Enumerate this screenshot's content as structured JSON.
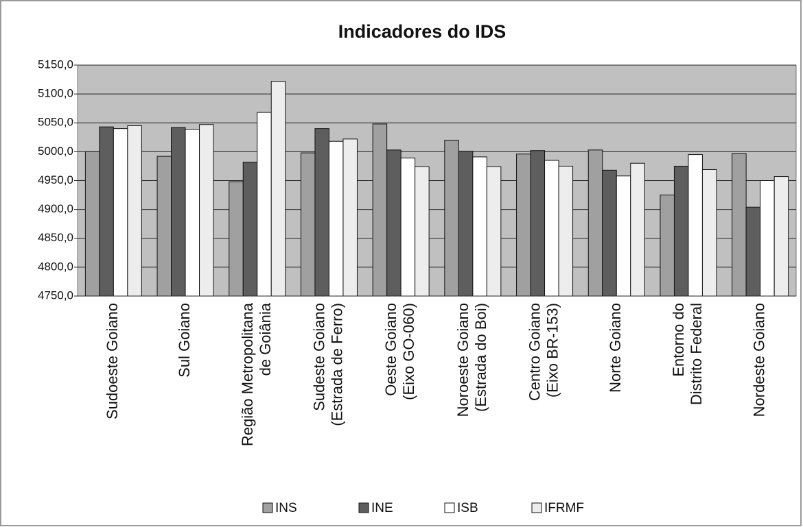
{
  "chart_data": {
    "type": "bar",
    "title": "Indicadores do IDS",
    "categories": [
      "Sudoeste Goiano",
      "Sul Goiano",
      "Região Metropolitana\nde Goiânia",
      "Sudeste Goiano\n(Estrada de Ferro)",
      "Oeste Goiano\n(Eixo GO-060)",
      "Noroeste Goiano\n(Estrada do Boi)",
      "Centro Goiano\n(Eixo BR-153)",
      "Norte Goiano",
      "Entorno do\nDistrito Federal",
      "Nordeste Goiano"
    ],
    "series": [
      {
        "name": "INS",
        "color": "#a0a0a0",
        "values": [
          5000,
          4992,
          4948,
          4998,
          5048,
          5020,
          4996,
          5003,
          4925,
          4997
        ]
      },
      {
        "name": "INE",
        "color": "#5e5e5e",
        "values": [
          5043,
          5042,
          4982,
          5040,
          5003,
          5001,
          5002,
          4968,
          4975,
          4904
        ]
      },
      {
        "name": "ISB",
        "color": "#ffffff",
        "values": [
          5040,
          5039,
          5068,
          5018,
          4989,
          4991,
          4985,
          4958,
          4995,
          4950
        ]
      },
      {
        "name": "IFRMF",
        "color": "#ededed",
        "values": [
          5045,
          5047,
          5122,
          5022,
          4974,
          4974,
          4975,
          4980,
          4969,
          4957
        ]
      }
    ],
    "ylim": [
      4750,
      5150
    ],
    "yticks": [
      {
        "value": 4750,
        "label": "4750,0"
      },
      {
        "value": 4800,
        "label": "4800,0"
      },
      {
        "value": 4850,
        "label": "4850,0"
      },
      {
        "value": 4900,
        "label": "4900,0"
      },
      {
        "value": 4950,
        "label": "4950,0"
      },
      {
        "value": 5000,
        "label": "5000,0"
      },
      {
        "value": 5050,
        "label": "5050,0"
      },
      {
        "value": 5100,
        "label": "5100,0"
      },
      {
        "value": 5150,
        "label": "5150,0"
      }
    ],
    "grid": true,
    "legend": "bottom",
    "plot_background": "#c0c0c0"
  }
}
